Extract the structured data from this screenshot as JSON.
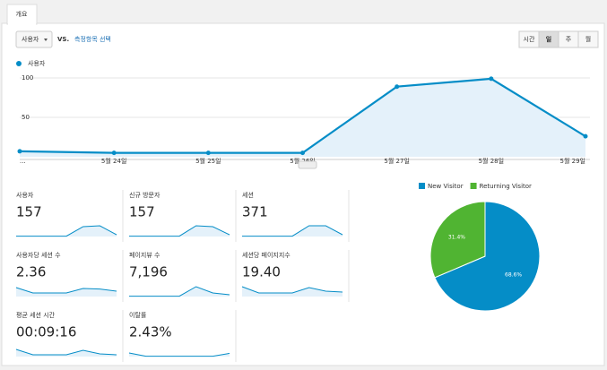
{
  "tab": "개요",
  "toolbar": {
    "metric": "사용자",
    "vs": "VS.",
    "select_metric": "측정항목 선택",
    "intervals": [
      "시간",
      "일",
      "주",
      "월"
    ],
    "selected_interval": "일"
  },
  "chart_data": [
    {
      "type": "line",
      "legend": "사용자",
      "categories": [
        "...",
        "5월 24일",
        "5월 25일",
        "5월 26일",
        "5월 27일",
        "5월 28일",
        "5월 29일"
      ],
      "values": [
        7,
        5,
        5,
        5,
        89,
        99,
        26
      ],
      "color": "#058dc7",
      "ylim": [
        0,
        108
      ],
      "yticks": [
        100,
        50
      ],
      "grid": true
    },
    {
      "type": "pie",
      "series": [
        {
          "name": "New Visitor",
          "color": "#058dc7",
          "values": [
            68.6
          ],
          "value_labels": [
            "68.6%"
          ]
        },
        {
          "name": "Returning Visitor",
          "color": "#50b432",
          "values": [
            31.4
          ],
          "value_labels": [
            "31.4%"
          ]
        }
      ]
    }
  ],
  "metrics": [
    {
      "name": "사용자",
      "value": "157",
      "spark": [
        2,
        2,
        2,
        2,
        55,
        60,
        10
      ]
    },
    {
      "name": "신규 방문자",
      "value": "157",
      "spark": [
        2,
        2,
        2,
        2,
        60,
        55,
        10
      ]
    },
    {
      "name": "세션",
      "value": "371",
      "spark": [
        2,
        2,
        2,
        2,
        60,
        60,
        10
      ]
    },
    {
      "name": "사용자당 세션 수",
      "value": "2.36",
      "spark": [
        50,
        20,
        20,
        20,
        45,
        42,
        30
      ]
    },
    {
      "name": "페이지뷰 수",
      "value": "7,196",
      "spark": [
        2,
        2,
        2,
        2,
        55,
        20,
        10
      ]
    },
    {
      "name": "세션당 페이지지수",
      "value": "19.40",
      "spark": [
        55,
        20,
        20,
        20,
        50,
        30,
        25
      ]
    },
    {
      "name": "평균 세션 시간",
      "value": "00:09:16",
      "spark": [
        40,
        10,
        10,
        10,
        35,
        15,
        10
      ]
    },
    {
      "name": "이탈률",
      "value": "2.43%",
      "spark": [
        20,
        2,
        2,
        2,
        2,
        2,
        18
      ]
    }
  ],
  "spark_ylim": [
    0,
    100
  ]
}
